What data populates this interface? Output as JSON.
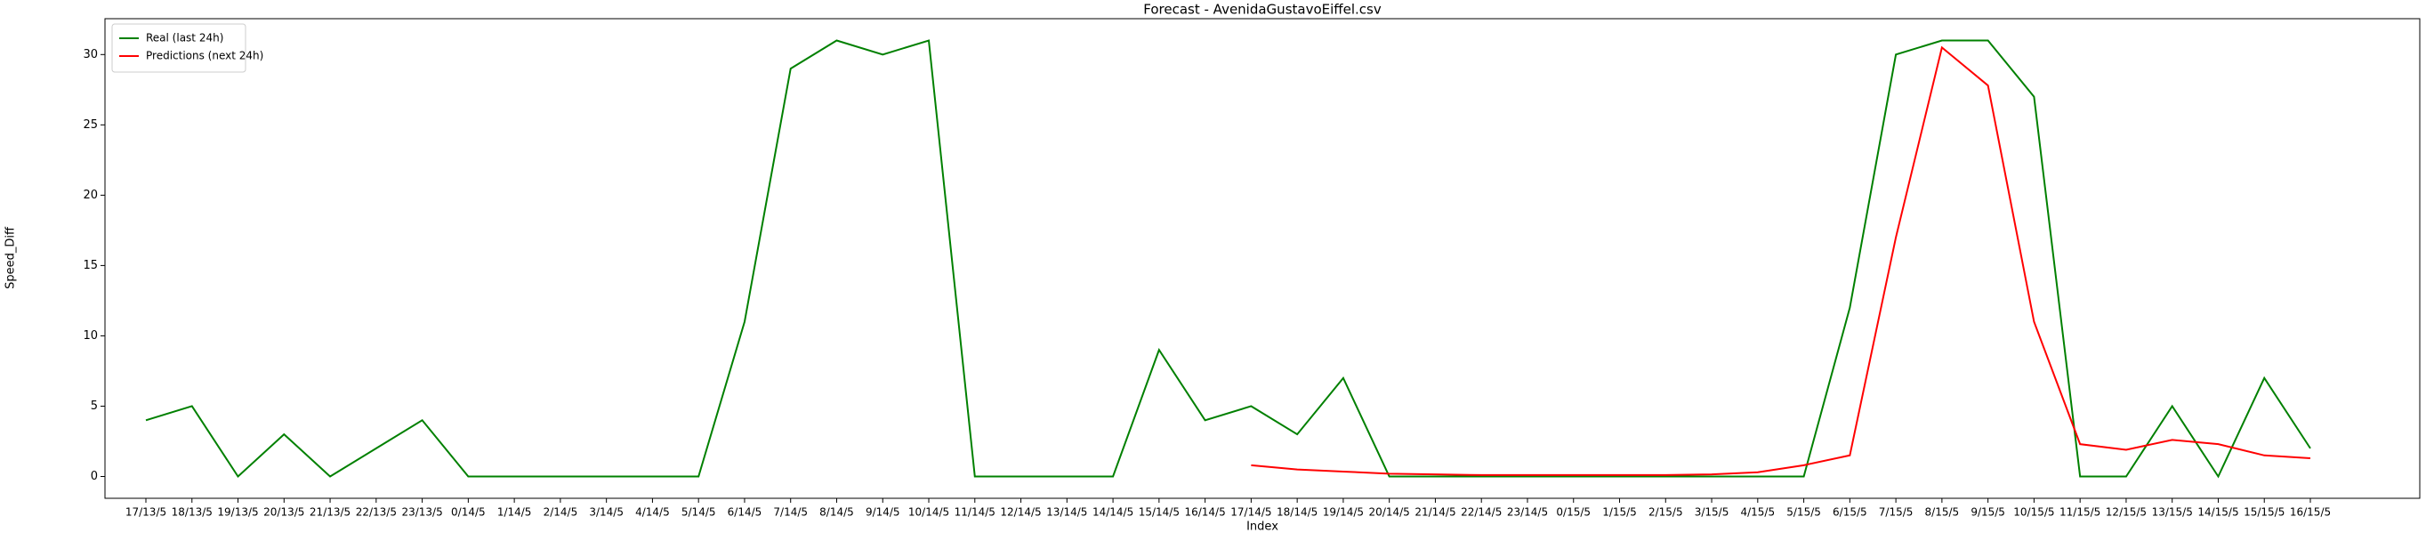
{
  "chart_data": {
    "type": "line",
    "title": "Forecast - AvenidaGustavoEiffel.csv",
    "xlabel": "Index",
    "ylabel": "Speed_Diff",
    "categories": [
      "17/13/5",
      "18/13/5",
      "19/13/5",
      "20/13/5",
      "21/13/5",
      "22/13/5",
      "23/13/5",
      "0/14/5",
      "1/14/5",
      "2/14/5",
      "3/14/5",
      "4/14/5",
      "5/14/5",
      "6/14/5",
      "7/14/5",
      "8/14/5",
      "9/14/5",
      "10/14/5",
      "11/14/5",
      "12/14/5",
      "13/14/5",
      "14/14/5",
      "15/14/5",
      "16/14/5",
      "17/14/5",
      "18/14/5",
      "19/14/5",
      "20/14/5",
      "21/14/5",
      "22/14/5",
      "23/14/5",
      "0/15/5",
      "1/15/5",
      "2/15/5",
      "3/15/5",
      "4/15/5",
      "5/15/5",
      "6/15/5",
      "7/15/5",
      "8/15/5",
      "9/15/5",
      "10/15/5",
      "11/15/5",
      "12/15/5",
      "13/15/5",
      "14/15/5",
      "15/15/5",
      "16/15/5"
    ],
    "series": [
      {
        "name": "Real (last 24h)",
        "color": "green",
        "values": [
          4,
          5,
          0,
          3,
          0,
          2,
          4,
          0,
          0,
          0,
          0,
          0,
          0,
          11,
          29,
          31,
          30,
          31,
          0,
          0,
          0,
          0,
          9,
          4,
          5,
          3,
          7,
          0,
          0,
          0,
          0,
          0,
          0,
          0,
          0,
          0,
          0,
          12,
          30,
          31,
          31,
          27,
          0,
          0,
          5,
          0,
          7,
          2
        ]
      },
      {
        "name": "Predictions (next 24h)",
        "color": "red",
        "values": [
          null,
          null,
          null,
          null,
          null,
          null,
          null,
          null,
          null,
          null,
          null,
          null,
          null,
          null,
          null,
          null,
          null,
          null,
          null,
          null,
          null,
          null,
          null,
          null,
          0.8,
          0.5,
          0.35,
          0.2,
          0.15,
          0.1,
          0.1,
          0.1,
          0.1,
          0.1,
          0.15,
          0.3,
          0.8,
          1.5,
          17,
          30.5,
          27.8,
          11,
          2.3,
          1.9,
          2.6,
          2.3,
          1.5,
          1.3
        ]
      }
    ],
    "ylim": [
      -1.55,
      32.55
    ],
    "yticks": [
      0,
      5,
      10,
      15,
      20,
      25,
      30
    ],
    "legend": "upper left"
  }
}
